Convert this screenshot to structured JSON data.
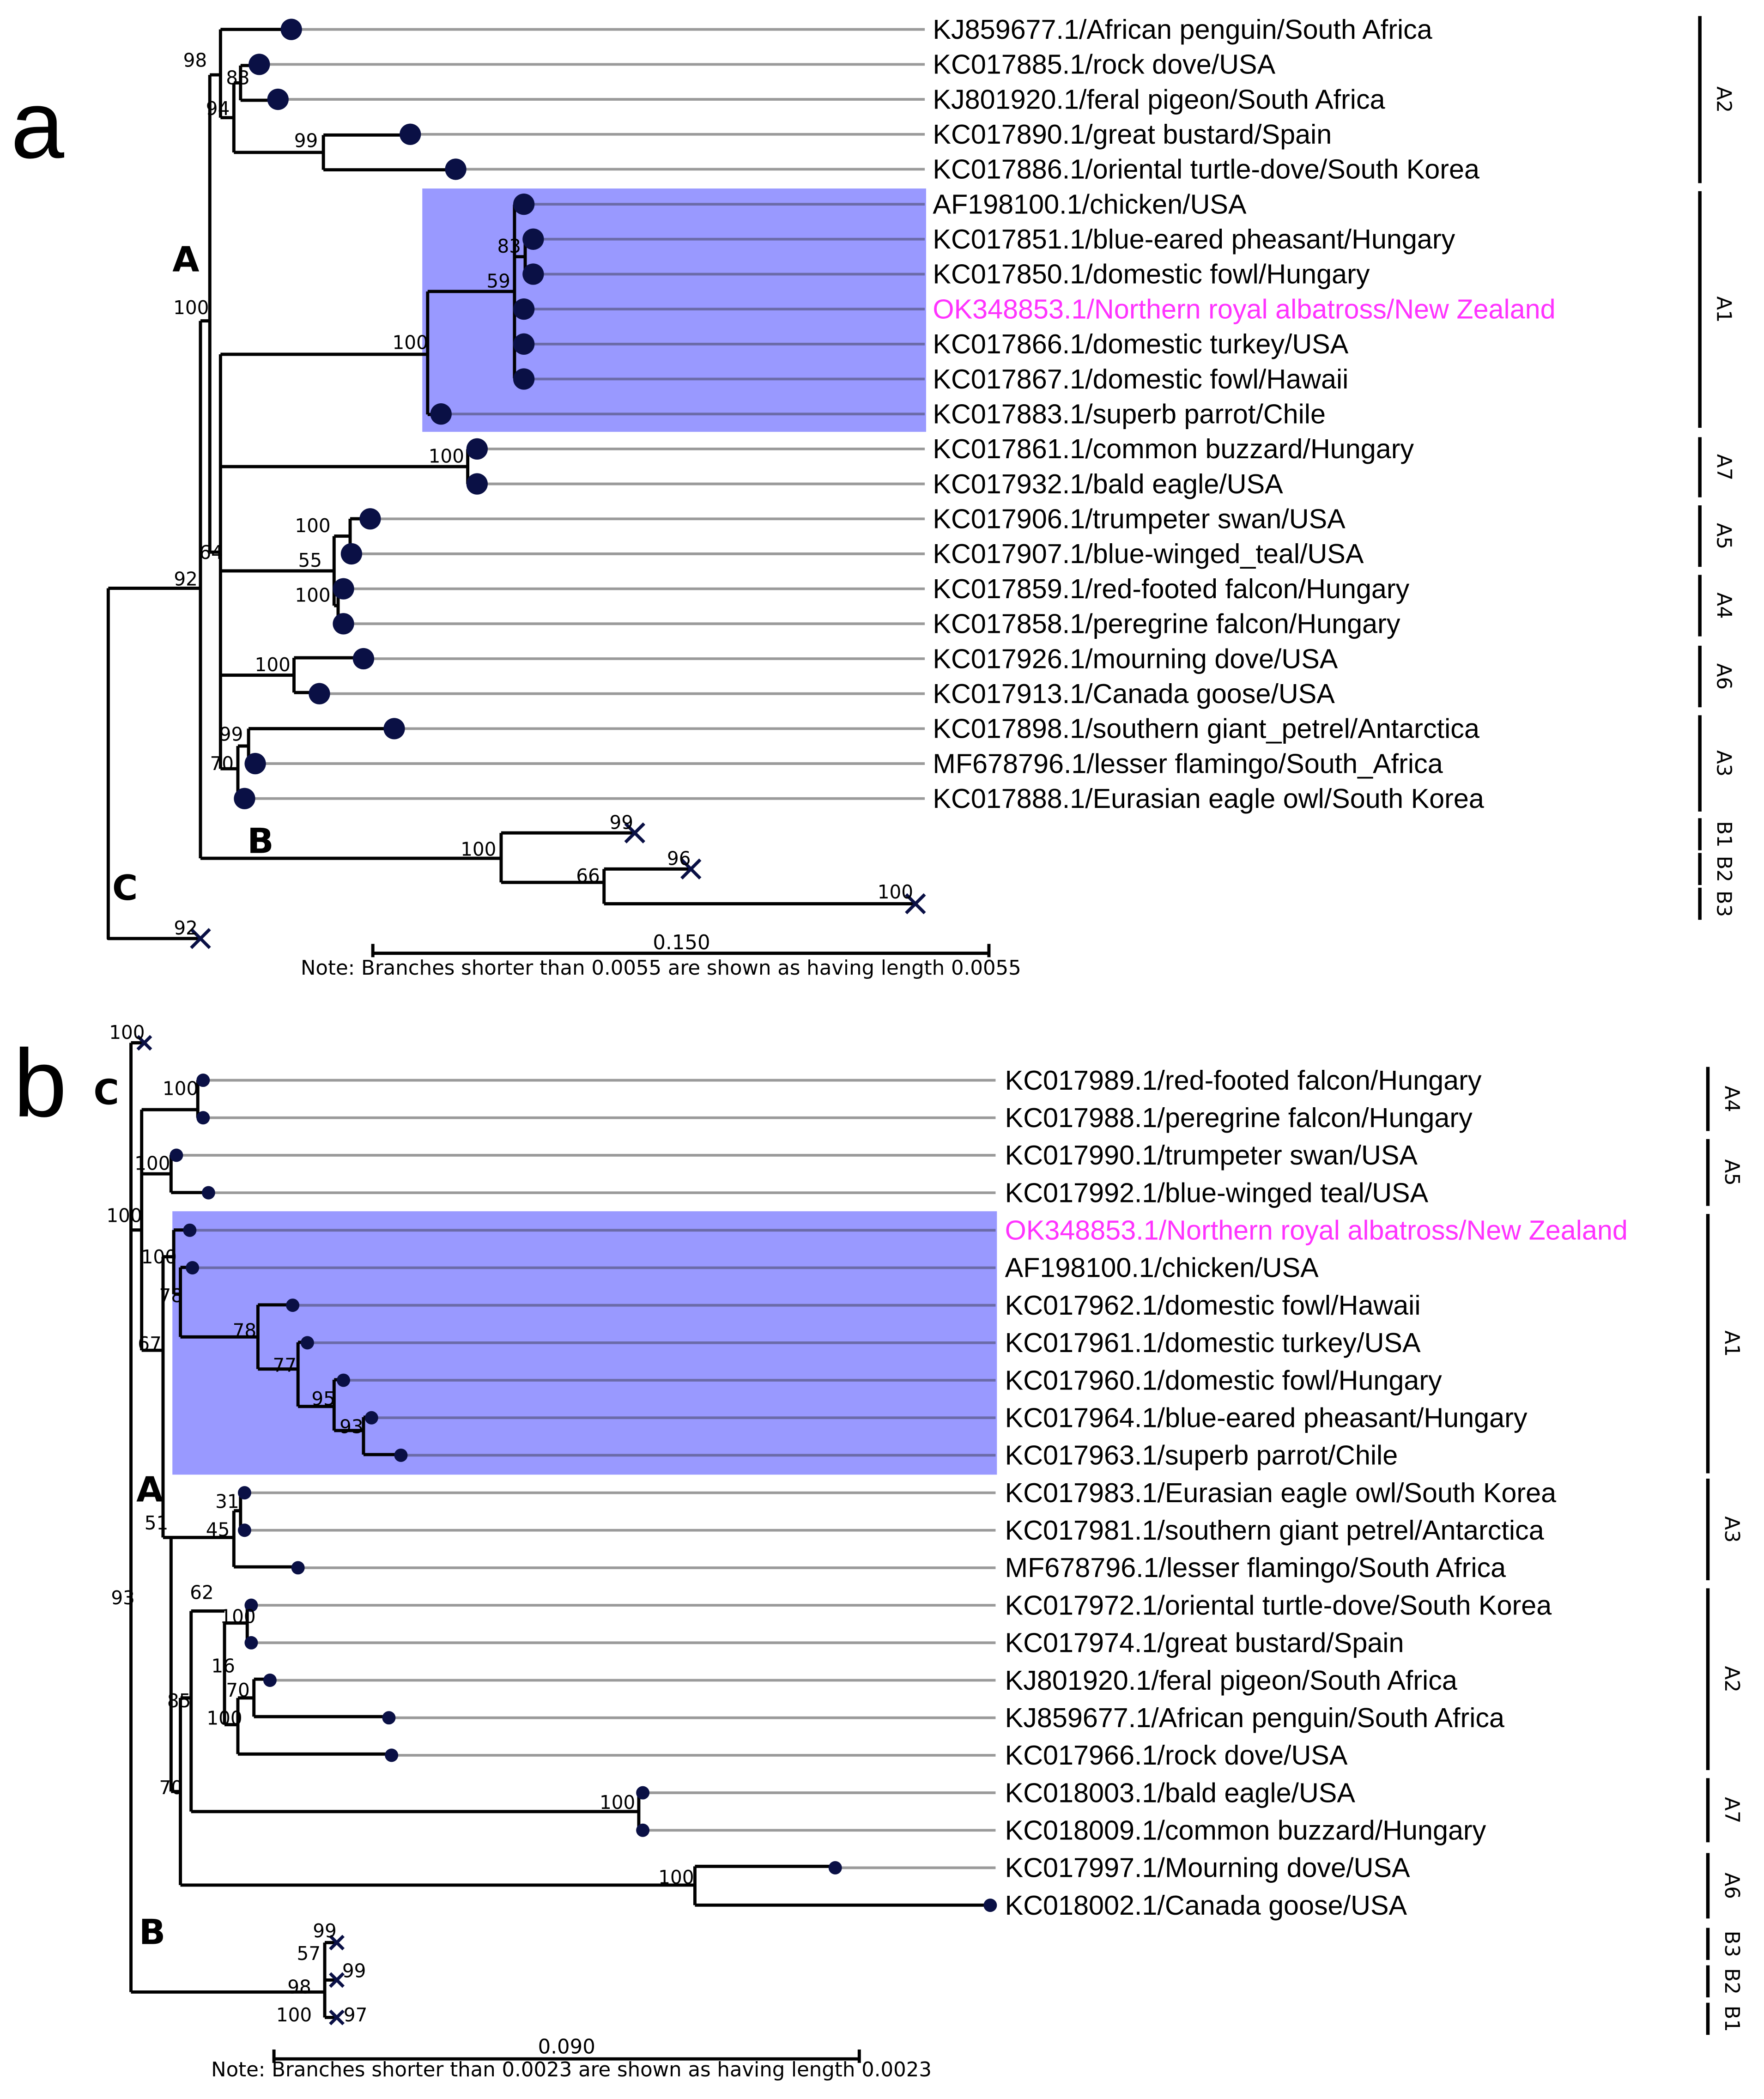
{
  "colors": {
    "dot": "#0a1045",
    "highlight_box": "#9999ff",
    "highlight_text": "#ff33ff",
    "branch": "#000000",
    "leader": "#9a9a9a"
  },
  "panel_a": {
    "letter": "a",
    "clade_letters": {
      "A": "A",
      "B": "B",
      "C": "C"
    },
    "leaves": [
      "KJ859677.1/African penguin/South Africa",
      "KC017885.1/rock dove/USA",
      "KJ801920.1/feral pigeon/South Africa",
      "KC017890.1/great bustard/Spain",
      "KC017886.1/oriental turtle-dove/South Korea",
      "AF198100.1/chicken/USA",
      "KC017851.1/blue-eared pheasant/Hungary",
      "KC017850.1/domestic fowl/Hungary",
      "OK348853.1/Northern royal albatross/New Zealand",
      "KC017866.1/domestic turkey/USA",
      "KC017867.1/domestic fowl/Hawaii",
      "KC017883.1/superb parrot/Chile",
      "KC017861.1/common buzzard/Hungary",
      "KC017932.1/bald eagle/USA",
      "KC017906.1/trumpeter swan/USA",
      "KC017907.1/blue-winged_teal/USA",
      "KC017859.1/red-footed falcon/Hungary",
      "KC017858.1/peregrine falcon/Hungary",
      "KC017926.1/mourning dove/USA",
      "KC017913.1/Canada goose/USA",
      "KC017898.1/southern giant_petrel/Antarctica",
      "MF678796.1/lesser flamingo/South_Africa",
      "KC017888.1/Eurasian eagle owl/South Korea"
    ],
    "highlighted_leaf": 8,
    "node_support": [
      "98",
      "83",
      "94",
      "99",
      "83",
      "59",
      "100",
      "100",
      "100",
      "100",
      "55",
      "64",
      "100",
      "92",
      "100",
      "99",
      "70",
      "100",
      "99",
      "66",
      "96",
      "100",
      "92"
    ],
    "clades": [
      "A2",
      "A1",
      "A7",
      "A5",
      "A4",
      "A6",
      "A3",
      "B1",
      "B2",
      "B3"
    ],
    "scale_label": "0.150",
    "note": "Note: Branches shorter than 0.0055 are shown as having length 0.0055"
  },
  "panel_b": {
    "letter": "b",
    "clade_letters": {
      "A": "A",
      "B": "B",
      "C": "C"
    },
    "leaves": [
      "KC017989.1/red-footed falcon/Hungary",
      "KC017988.1/peregrine falcon/Hungary",
      "KC017990.1/trumpeter swan/USA",
      "KC017992.1/blue-winged teal/USA",
      "OK348853.1/Northern royal albatross/New Zealand",
      "AF198100.1/chicken/USA",
      "KC017962.1/domestic fowl/Hawaii",
      "KC017961.1/domestic turkey/USA",
      "KC017960.1/domestic fowl/Hungary",
      "KC017964.1/blue-eared pheasant/Hungary",
      "KC017963.1/superb parrot/Chile",
      "KC017983.1/Eurasian eagle owl/South Korea",
      "KC017981.1/southern giant petrel/Antarctica",
      "MF678796.1/lesser flamingo/South Africa",
      "KC017972.1/oriental turtle-dove/South Korea",
      "KC017974.1/great bustard/Spain",
      "KJ801920.1/feral pigeon/South Africa",
      "KJ859677.1/African penguin/South Africa",
      "KC017966.1/rock dove/USA",
      "KC018003.1/bald eagle/USA",
      "KC018009.1/common buzzard/Hungary",
      "KC017997.1/Mourning dove/USA",
      "KC018002.1/Canada goose/USA"
    ],
    "highlighted_leaf": 4,
    "node_support": [
      "100",
      "100",
      "100",
      "100",
      "100",
      "78",
      "67",
      "78",
      "77",
      "95",
      "93",
      "31",
      "45",
      "51",
      "62",
      "100",
      "16",
      "70",
      "100",
      "85",
      "70",
      "93",
      "100",
      "100",
      "99",
      "57",
      "99",
      "98",
      "100",
      "97"
    ],
    "clades": [
      "A4",
      "A5",
      "A1",
      "A3",
      "A2",
      "A7",
      "A6",
      "B3",
      "B2",
      "B1"
    ],
    "scale_label": "0.090",
    "note": "Note: Branches shorter than 0.0023 are shown as having length 0.0023"
  }
}
